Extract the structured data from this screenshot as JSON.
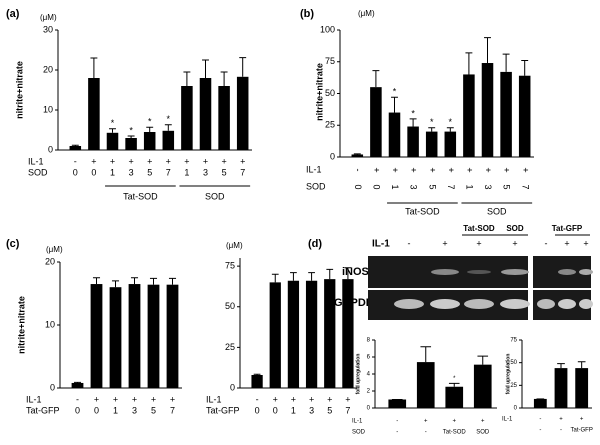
{
  "chart_data": [
    {
      "type": "bar",
      "panel": "(a)",
      "unit": "(μM)",
      "ylabel": "nitrite+nitrate",
      "ylim": [
        0,
        30
      ],
      "yticks": [
        0,
        10,
        20,
        30
      ],
      "color": "#000000",
      "values": [
        1,
        18,
        4.3,
        3,
        4.5,
        4.8,
        16,
        18,
        16,
        18.3
      ],
      "errors": [
        0.2,
        5,
        1,
        0.5,
        1.2,
        1.5,
        3.5,
        4.5,
        3.5,
        4.8
      ],
      "markers": [
        null,
        null,
        "*",
        "*",
        "*",
        "*",
        null,
        null,
        null,
        null
      ],
      "rows": [
        {
          "name": "IL-1",
          "labels": [
            "-",
            "+",
            "+",
            "+",
            "+",
            "+",
            "+",
            "+",
            "+",
            "+"
          ]
        },
        {
          "name": "SOD",
          "labels": [
            "0",
            "0",
            "1",
            "3",
            "5",
            "7",
            "1",
            "3",
            "5",
            "7"
          ]
        }
      ],
      "groups": [
        {
          "label": "Tat-SOD",
          "start": 2,
          "end": 5
        },
        {
          "label": "SOD",
          "start": 6,
          "end": 9
        }
      ]
    },
    {
      "type": "bar",
      "panel": "(b)",
      "unit": "(μM)",
      "ylabel": "nitrite+nitrate",
      "ylim": [
        0,
        100
      ],
      "yticks": [
        0,
        25,
        50,
        75,
        100
      ],
      "color": "#000000",
      "values": [
        2,
        55,
        35,
        24,
        20,
        20,
        65,
        74,
        67,
        64
      ],
      "errors": [
        0.5,
        13,
        12,
        6,
        3,
        3,
        17,
        20,
        14,
        12
      ],
      "markers": [
        null,
        null,
        "*",
        "*",
        "*",
        "*",
        null,
        null,
        null,
        null
      ],
      "rows": [
        {
          "name": "IL-1",
          "labels": [
            "-",
            "+",
            "+",
            "+",
            "+",
            "+",
            "+",
            "+",
            "+",
            "+"
          ]
        },
        {
          "name": "SOD",
          "labels": [
            "0",
            "0",
            "1",
            "3",
            "5",
            "7",
            "1",
            "3",
            "5",
            "7"
          ]
        }
      ],
      "groups": [
        {
          "label": "Tat-SOD",
          "start": 2,
          "end": 5
        },
        {
          "label": "SOD",
          "start": 6,
          "end": 9
        }
      ]
    },
    {
      "type": "bar",
      "panel": "(c)",
      "unit": "(μM)",
      "ylabel": "nitrite+nitrate",
      "ylim": [
        0,
        20
      ],
      "yticks": [
        0,
        10,
        20
      ],
      "color": "#000000",
      "values": [
        0.8,
        16.5,
        16,
        16.5,
        16.4,
        16.4
      ],
      "errors": [
        0.1,
        1,
        1,
        1,
        1,
        1
      ],
      "rows": [
        {
          "name": "IL-1",
          "labels": [
            "-",
            "+",
            "+",
            "+",
            "+",
            "+"
          ]
        },
        {
          "name": "Tat-GFP",
          "labels": [
            "0",
            "0",
            "1",
            "3",
            "5",
            "7"
          ]
        }
      ]
    },
    {
      "type": "bar",
      "unit": "(μM)",
      "ylim": [
        0,
        80
      ],
      "yticks": [
        0,
        25,
        50,
        75
      ],
      "color": "#000000",
      "values": [
        8,
        65,
        66,
        66,
        67,
        67
      ],
      "errors": [
        0.5,
        5,
        5,
        5,
        6,
        7
      ],
      "rows": [
        {
          "name": "IL-1",
          "labels": [
            "-",
            "+",
            "+",
            "+",
            "+",
            "+"
          ]
        },
        {
          "name": "Tat-GFP",
          "labels": [
            "0",
            "0",
            "1",
            "3",
            "5",
            "7"
          ]
        }
      ]
    },
    {
      "type": "bar",
      "ylabel": "fold upregulation",
      "ylim": [
        0,
        8
      ],
      "yticks": [
        0,
        2,
        4,
        6,
        8
      ],
      "color": "#000000",
      "values": [
        1,
        5.4,
        2.5,
        5.1
      ],
      "errors": [
        0,
        1.8,
        0.4,
        1
      ],
      "markers": [
        null,
        null,
        "*",
        null
      ],
      "rows": [
        {
          "name": "IL-1",
          "labels": [
            "-",
            "+",
            "+",
            "+"
          ]
        },
        {
          "name": "SOD",
          "labels": [
            "-",
            "-",
            "Tat-SOD",
            "SOD"
          ]
        }
      ]
    },
    {
      "type": "bar",
      "ylabel": "fold upregulation",
      "ylim": [
        0,
        75
      ],
      "yticks": [
        0,
        25,
        50,
        75
      ],
      "color": "#000000",
      "values": [
        10,
        44,
        44
      ],
      "errors": [
        0,
        5,
        7
      ],
      "rows": [
        {
          "name": "IL-1",
          "labels": [
            "-",
            "+",
            "+"
          ]
        },
        {
          "name": "",
          "labels": [
            "-",
            "-",
            "Tat-GFP"
          ]
        }
      ]
    }
  ],
  "gel": {
    "panel": "(d)",
    "treatment": "IL-1",
    "lanes_left": [
      "-",
      "+",
      "+",
      "+"
    ],
    "lanes_right": [
      "-",
      "+",
      "+"
    ],
    "group_tatsod": "Tat-SOD",
    "group_sod": "SOD",
    "group_tatgfp": "Tat-GFP",
    "row_inos": "iNOS",
    "row_gapdh": "GAPDH"
  }
}
